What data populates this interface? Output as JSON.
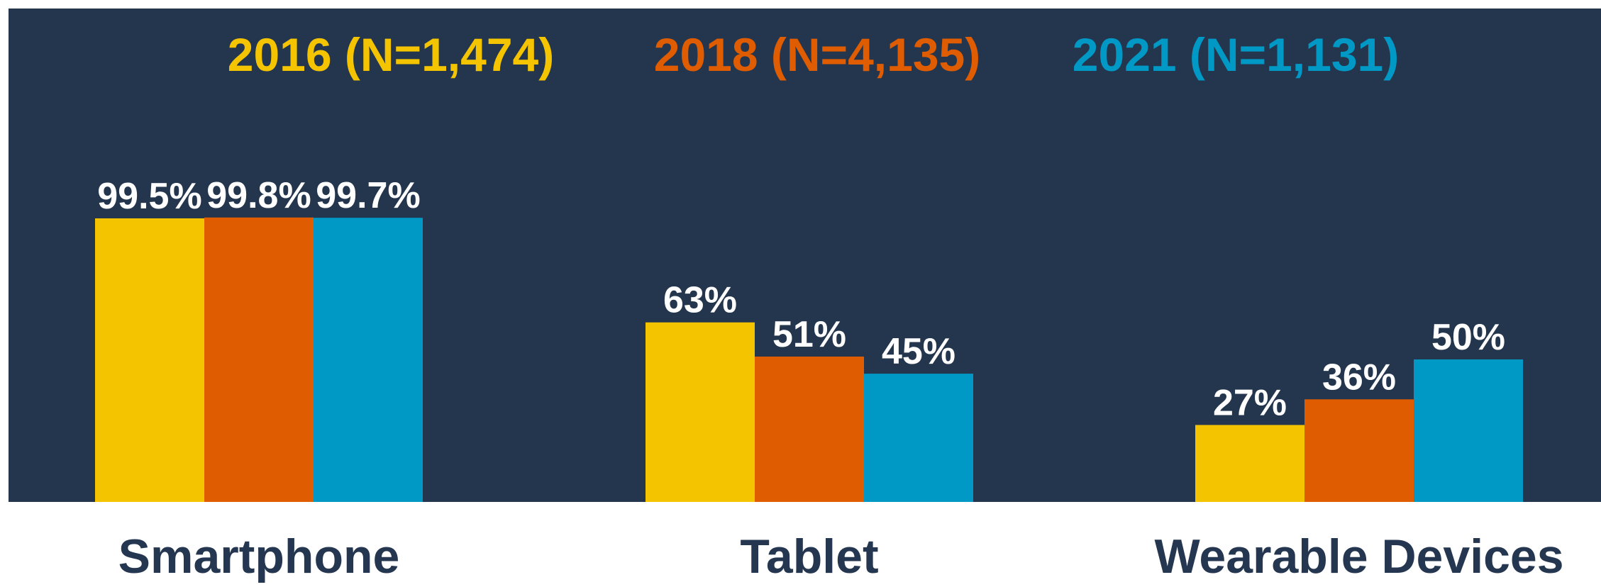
{
  "chart_data": {
    "type": "bar",
    "categories": [
      "Smartphone",
      "Tablet",
      "Wearable Devices"
    ],
    "series": [
      {
        "name": "2016 (N=1,474)",
        "color": "#f5c400",
        "values": [
          99.5,
          63,
          27
        ],
        "value_labels": [
          "99.5%",
          "63%",
          "27%"
        ]
      },
      {
        "name": "2018 (N=4,135)",
        "color": "#e05c00",
        "values": [
          99.8,
          51,
          36
        ],
        "value_labels": [
          "99.8%",
          "51%",
          "36%"
        ]
      },
      {
        "name": "2021 (N=1,131)",
        "color": "#0099c6",
        "values": [
          99.7,
          45,
          50
        ],
        "value_labels": [
          "99.7%",
          "45%",
          "50%"
        ]
      }
    ]
  }
}
